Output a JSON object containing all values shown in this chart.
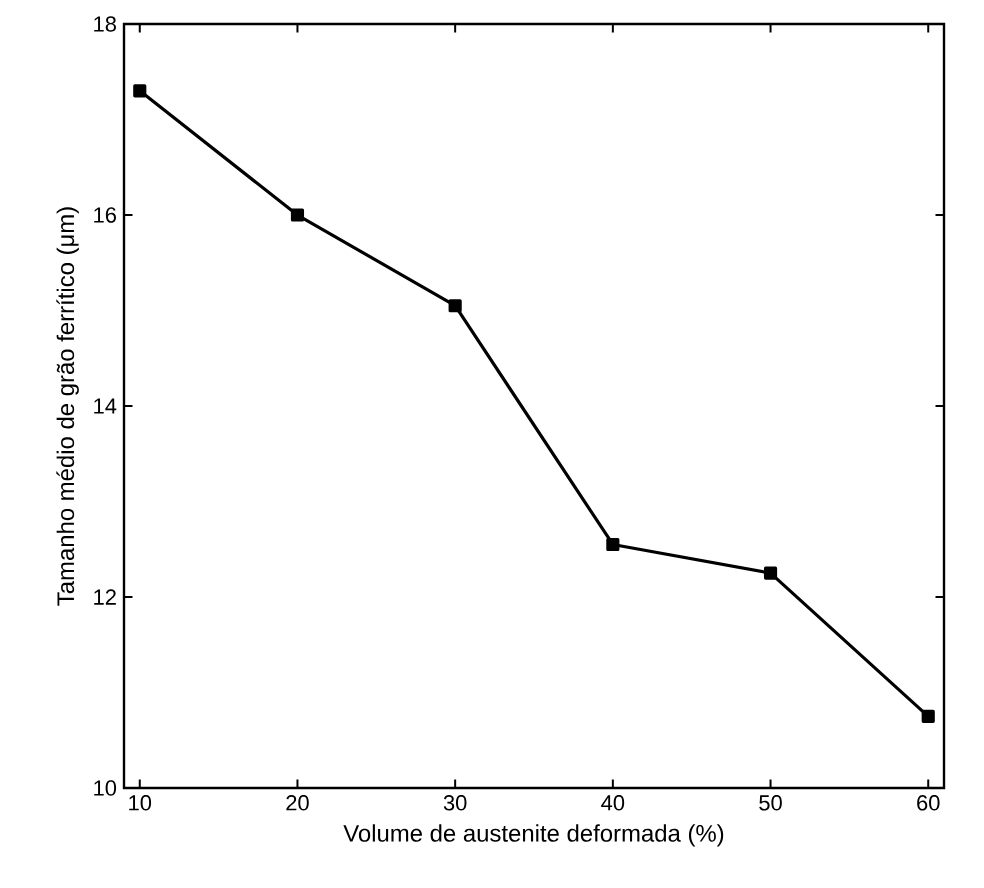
{
  "chart_data": {
    "type": "line",
    "xlabel": "Volume de austenite deformada (%)",
    "ylabel": "Tamanho médio de grão ferrítico (μm)",
    "x": [
      10,
      20,
      30,
      40,
      50,
      60
    ],
    "values": [
      17.3,
      16.0,
      15.05,
      12.55,
      12.25,
      10.75
    ],
    "color": "#000000",
    "marker": "square",
    "line_style": "solid",
    "xlim": [
      9,
      61
    ],
    "ylim": [
      10,
      18
    ],
    "xticks": [
      10,
      20,
      30,
      40,
      50,
      60
    ],
    "yticks": [
      10,
      12,
      14,
      16,
      18
    ]
  }
}
